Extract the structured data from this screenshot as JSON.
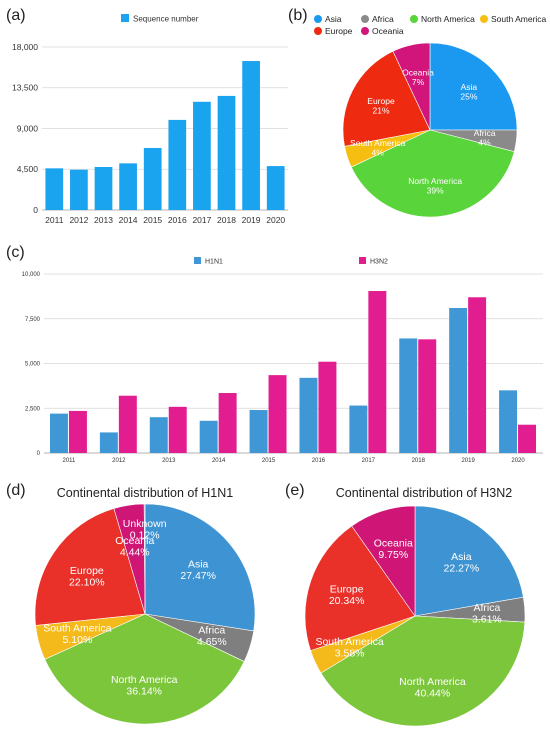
{
  "colors": {
    "bar_a": "#1aa3ef",
    "h1n1": "#3f97d6",
    "h3n2": "#e21d8f",
    "grid": "#d6d6d6"
  },
  "panels": [
    {
      "label": "(a)"
    },
    {
      "label": "(b)"
    },
    {
      "label": "(c)"
    },
    {
      "label": "(d)"
    },
    {
      "label": "(e)"
    }
  ],
  "chart_data": [
    {
      "panel": "(a)",
      "type": "bar",
      "categories": [
        "2011",
        "2012",
        "2013",
        "2014",
        "2015",
        "2016",
        "2017",
        "2018",
        "2019",
        "2020"
      ],
      "series": [
        {
          "name": "Sequence number",
          "color": "#1aa3ef",
          "values": [
            4600,
            4450,
            4750,
            5150,
            6850,
            9950,
            11950,
            12600,
            16450,
            4850
          ]
        }
      ],
      "ylim": [
        0,
        18000
      ],
      "yticks": [
        "0",
        "4,500",
        "9,000",
        "13,500",
        "18,000"
      ],
      "ytick_values": [
        0,
        4500,
        9000,
        13500,
        18000
      ],
      "grid": true,
      "legend_position": "top-center"
    },
    {
      "panel": "(b)",
      "type": "pie",
      "legend_position": "top",
      "slices": [
        {
          "name": "Asia",
          "label": "Asia",
          "pct": "25%",
          "value": 25,
          "color": "#1b98f0",
          "text": "#ffffff"
        },
        {
          "name": "Africa",
          "label": "Africa",
          "pct": "4%",
          "value": 4,
          "color": "#8a8a8a",
          "text": "#ffffff"
        },
        {
          "name": "North America",
          "label": "North America",
          "pct": "39%",
          "value": 39,
          "color": "#5ad43b",
          "text": "#ffffff"
        },
        {
          "name": "South America",
          "label": "South America",
          "pct": "4%",
          "value": 4,
          "color": "#f6be10",
          "text": "#ffffff"
        },
        {
          "name": "Europe",
          "label": "Europe",
          "pct": "21%",
          "value": 21,
          "color": "#ee2a10",
          "text": "#ffffff"
        },
        {
          "name": "Oceania",
          "label": "Oceania",
          "pct": "7%",
          "value": 7,
          "color": "#d2157a",
          "text": "#ffffff"
        }
      ]
    },
    {
      "panel": "(c)",
      "type": "bar",
      "categories": [
        "2011",
        "2012",
        "2013",
        "2014",
        "2015",
        "2016",
        "2017",
        "2018",
        "2019",
        "2020"
      ],
      "series": [
        {
          "name": "H1N1",
          "color": "#3f97d6",
          "values": [
            2200,
            1150,
            2000,
            1800,
            2400,
            4200,
            2650,
            6400,
            8100,
            3500
          ]
        },
        {
          "name": "H3N2",
          "color": "#e21d8f",
          "values": [
            2350,
            3200,
            2580,
            3350,
            4350,
            5100,
            9050,
            6350,
            8700,
            1580
          ]
        }
      ],
      "ylim": [
        0,
        10000
      ],
      "yticks": [
        "0",
        "2,500",
        "5,000",
        "7,500",
        "10,000"
      ],
      "ytick_values": [
        0,
        2500,
        5000,
        7500,
        10000
      ],
      "grid": true,
      "legend_position": "top"
    },
    {
      "panel": "(d)",
      "type": "pie",
      "title": "Continental distribution of H1N1",
      "slices": [
        {
          "name": "Asia",
          "label": "Asia",
          "pct": "27.47%",
          "value": 27.47,
          "color": "#3e93d3",
          "text": "#ffffff"
        },
        {
          "name": "Africa",
          "label": "Africa",
          "pct": "4.65%",
          "value": 4.65,
          "color": "#7f7f7f",
          "text": "#ffffff"
        },
        {
          "name": "North America",
          "label": "North America",
          "pct": "36.14%",
          "value": 36.14,
          "color": "#7cc63c",
          "text": "#ffffff"
        },
        {
          "name": "South America",
          "label": "South America",
          "pct": "5.10%",
          "value": 5.1,
          "color": "#f4b91b",
          "text": "#ffffff"
        },
        {
          "name": "Europe",
          "label": "Europe",
          "pct": "22.10%",
          "value": 22.1,
          "color": "#e9312a",
          "text": "#ffffff"
        },
        {
          "name": "Oceania",
          "label": "Oceania",
          "pct": "4.44%",
          "value": 4.44,
          "color": "#cf1677",
          "text": "#ffffff"
        },
        {
          "name": "Unknown",
          "label": "Unknown",
          "pct": "0.12%",
          "value": 0.12,
          "color": "#7030a0",
          "text": "#ffffff"
        }
      ]
    },
    {
      "panel": "(e)",
      "type": "pie",
      "title": "Continental distribution of H3N2",
      "slices": [
        {
          "name": "Asia",
          "label": "Asia",
          "pct": "22.27%",
          "value": 22.27,
          "color": "#3e93d3",
          "text": "#ffffff"
        },
        {
          "name": "Africa",
          "label": "Africa",
          "pct": "3.61%",
          "value": 3.61,
          "color": "#7f7f7f",
          "text": "#ffffff"
        },
        {
          "name": "North America",
          "label": "North America",
          "pct": "40.44%",
          "value": 40.44,
          "color": "#7cc63c",
          "text": "#ffffff"
        },
        {
          "name": "South America",
          "label": "South America",
          "pct": "3.58%",
          "value": 3.58,
          "color": "#f4b91b",
          "text": "#ffffff"
        },
        {
          "name": "Europe",
          "label": "Europe",
          "pct": "20.34%",
          "value": 20.34,
          "color": "#e9312a",
          "text": "#ffffff"
        },
        {
          "name": "Oceania",
          "label": "Oceania",
          "pct": "9.75%",
          "value": 9.75,
          "color": "#cf1677",
          "text": "#ffffff"
        }
      ]
    }
  ]
}
